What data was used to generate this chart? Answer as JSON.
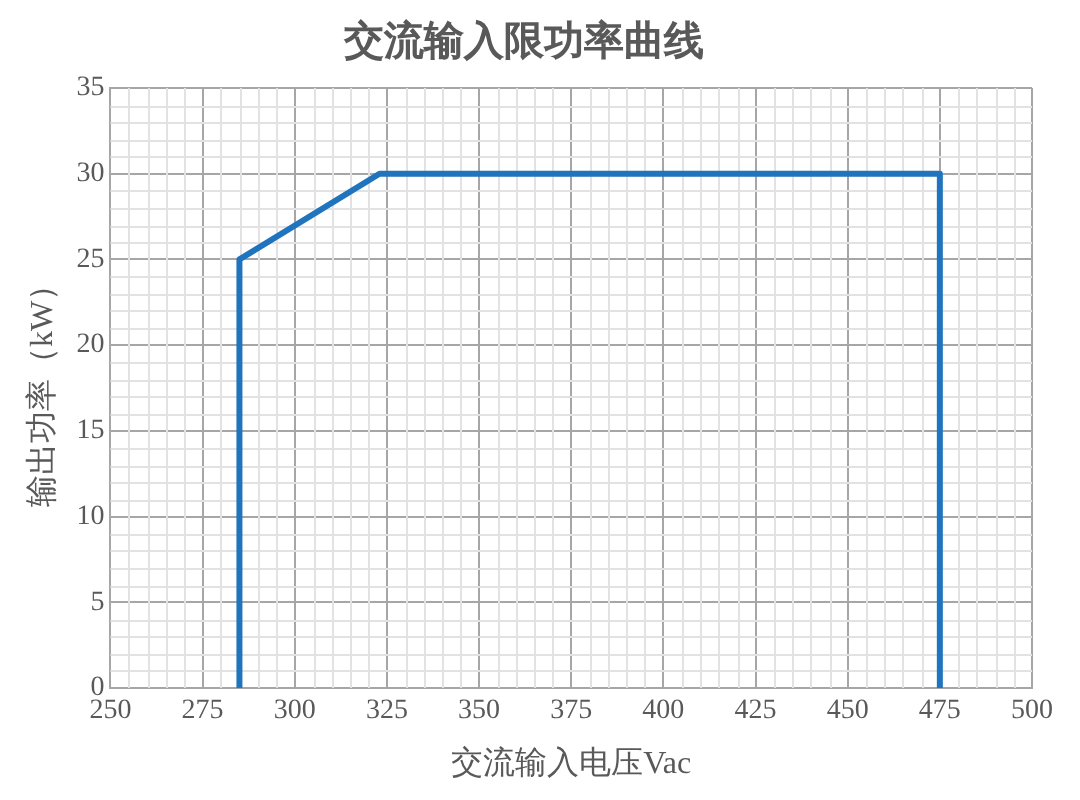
{
  "chart_data": {
    "type": "line",
    "title": "交流输入限功率曲线",
    "xlabel": "交流输入电压Vac",
    "ylabel": "输出功率（kW）",
    "x": [
      285,
      285,
      323,
      475,
      475
    ],
    "series": [
      {
        "color": "#1f74bd",
        "values": [
          0,
          25,
          30,
          30,
          0
        ]
      }
    ],
    "xlim": [
      250,
      500
    ],
    "xticks": [
      250,
      275,
      300,
      325,
      350,
      375,
      400,
      425,
      450,
      475,
      500
    ],
    "ylim": [
      0,
      35
    ],
    "yticks": [
      0,
      5,
      10,
      15,
      20,
      25,
      30,
      35
    ],
    "grid": true,
    "legend": false,
    "marker": "none",
    "line_style": "solid"
  }
}
